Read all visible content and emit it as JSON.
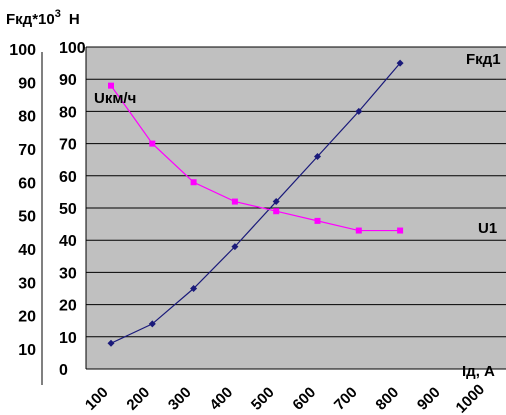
{
  "chart_data": {
    "type": "line",
    "plot_background": "#c0c0c0",
    "y_axis_label": "Fкд*10",
    "y_axis_label_exponent": "3",
    "y_axis_label_unit": "Н",
    "x_axis_label": "Iд, А",
    "y_inner_ticks": [
      "0",
      "10",
      "20",
      "30",
      "40",
      "50",
      "60",
      "70",
      "80",
      "90",
      "100"
    ],
    "y_outer_ticks": [
      "10",
      "20",
      "30",
      "40",
      "50",
      "60",
      "70",
      "80",
      "90",
      "100"
    ],
    "x_ticks": [
      "100",
      "200",
      "300",
      "400",
      "500",
      "600",
      "700",
      "800",
      "900",
      "1000"
    ],
    "ylim": [
      0,
      100
    ],
    "series": [
      {
        "name": "Fкд1",
        "color": "#1a1a7a",
        "marker": "diamond",
        "values": [
          8,
          14,
          25,
          38,
          52,
          66,
          80,
          95
        ]
      },
      {
        "name": "U1",
        "inner_label": "Uкм/ч",
        "color": "#ff00ff",
        "marker": "square",
        "values": [
          88,
          70,
          58,
          52,
          49,
          46,
          43,
          43
        ]
      }
    ]
  }
}
